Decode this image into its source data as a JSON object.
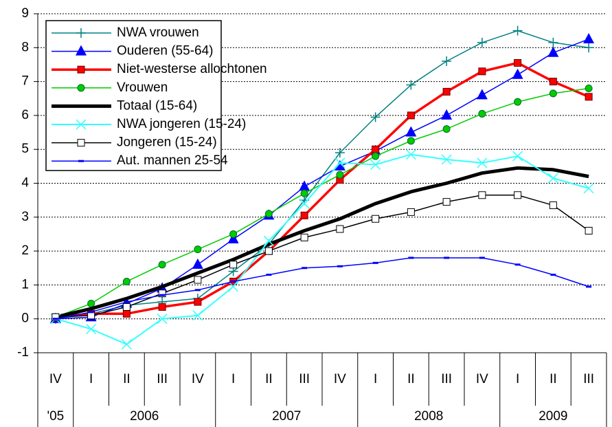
{
  "chart_data": {
    "type": "line",
    "categories": [
      "IV",
      "I",
      "II",
      "III",
      "IV",
      "I",
      "II",
      "III",
      "IV",
      "I",
      "II",
      "III",
      "IV",
      "I",
      "II",
      "III"
    ],
    "years": [
      {
        "label": "'05",
        "count": 1
      },
      {
        "label": "2006",
        "count": 4
      },
      {
        "label": "2007",
        "count": 4
      },
      {
        "label": "2008",
        "count": 4
      },
      {
        "label": "2009",
        "count": 3
      }
    ],
    "ylim": [
      -1,
      9
    ],
    "yticks": [
      -1,
      0,
      1,
      2,
      3,
      4,
      5,
      6,
      7,
      8,
      9
    ],
    "grid": true,
    "legend": "top-left",
    "series": [
      {
        "name": "NWA vrouwen",
        "color": "#008080",
        "marker": "plus",
        "width": 1.5,
        "values": [
          0,
          0.15,
          0.4,
          0.5,
          0.6,
          1.4,
          2.2,
          3.5,
          4.9,
          5.95,
          6.9,
          7.6,
          8.15,
          8.5,
          8.15,
          8.0
        ]
      },
      {
        "name": "Ouderen (55-64)",
        "color": "#0000ff",
        "marker": "triangle",
        "width": 1.5,
        "values": [
          0,
          0.05,
          0.45,
          0.9,
          1.6,
          2.35,
          3.05,
          3.9,
          4.5,
          4.95,
          5.5,
          6.0,
          6.6,
          7.2,
          7.85,
          8.25
        ]
      },
      {
        "name": "Niet-westerse allochtonen",
        "color": "#ff0000",
        "marker": "square",
        "width": 3.5,
        "values": [
          0.05,
          0.15,
          0.15,
          0.35,
          0.5,
          1.1,
          2.0,
          3.05,
          4.1,
          5.0,
          6.0,
          6.7,
          7.3,
          7.55,
          7.0,
          6.55
        ]
      },
      {
        "name": "Vrouwen",
        "color": "#00cc00",
        "marker": "circle",
        "width": 1.5,
        "values": [
          0.05,
          0.45,
          1.1,
          1.6,
          2.05,
          2.5,
          3.1,
          3.7,
          4.25,
          4.8,
          5.25,
          5.6,
          6.05,
          6.4,
          6.65,
          6.8
        ]
      },
      {
        "name": "Totaal (15-64)",
        "color": "#000000",
        "marker": "none",
        "width": 5,
        "values": [
          0.05,
          0.3,
          0.6,
          0.95,
          1.35,
          1.75,
          2.2,
          2.6,
          2.95,
          3.4,
          3.75,
          4.0,
          4.3,
          4.45,
          4.4,
          4.2
        ]
      },
      {
        "name": "NWA jongeren (15-24)",
        "color": "#33ffff",
        "marker": "x",
        "width": 2,
        "values": [
          0,
          -0.3,
          -0.75,
          0,
          0.1,
          0.95,
          2.3,
          3.4,
          4.6,
          4.55,
          4.85,
          4.7,
          4.6,
          4.8,
          4.15,
          3.85
        ]
      },
      {
        "name": "Jongeren (15-24)",
        "color": "#000000",
        "marker": "open-square",
        "width": 1.5,
        "values": [
          0.05,
          0.1,
          0.35,
          0.75,
          1.15,
          1.6,
          2.0,
          2.4,
          2.65,
          2.95,
          3.15,
          3.45,
          3.65,
          3.65,
          3.35,
          2.6
        ]
      },
      {
        "name": "Aut. mannen 25-54",
        "color": "#0000ff",
        "marker": "dash",
        "width": 1.5,
        "values": [
          0,
          0.2,
          0.5,
          0.7,
          0.85,
          1.1,
          1.3,
          1.5,
          1.55,
          1.65,
          1.8,
          1.8,
          1.8,
          1.6,
          1.3,
          0.95
        ]
      }
    ]
  }
}
